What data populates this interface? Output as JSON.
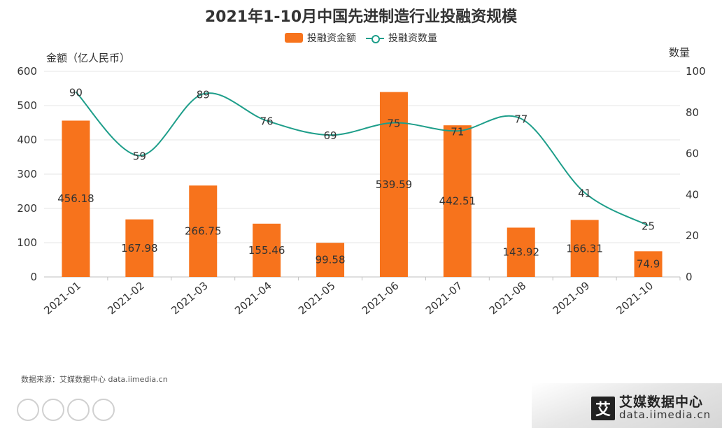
{
  "title": "2021年1-10月中国先进制造行业投融资规模",
  "legend": {
    "bar_label": "投融资金额",
    "line_label": "投融资数量"
  },
  "left_axis_title": "金额（亿人民币）",
  "right_axis_title": "数量",
  "source": "数据来源：艾媒数据中心 data.iimedia.cn",
  "brand": {
    "logo_char": "艾",
    "name": "艾媒数据中心",
    "url": "data.iimedia.cn"
  },
  "colors": {
    "bar": "#F7731C",
    "line": "#1E9E8A",
    "grid": "#e6e6e6",
    "axis": "#bfbfbf"
  },
  "chart_data": {
    "type": "bar",
    "categories": [
      "2021-01",
      "2021-02",
      "2021-03",
      "2021-04",
      "2021-05",
      "2021-06",
      "2021-07",
      "2021-08",
      "2021-09",
      "2021-10"
    ],
    "series": [
      {
        "name": "投融资金额",
        "type": "bar",
        "axis": "left",
        "values": [
          456.18,
          167.98,
          266.75,
          155.46,
          99.58,
          539.59,
          442.51,
          143.92,
          166.31,
          74.9
        ]
      },
      {
        "name": "投融资数量",
        "type": "line",
        "axis": "right",
        "values": [
          90,
          59,
          89,
          76,
          69,
          75,
          71,
          77,
          41,
          25
        ]
      }
    ],
    "y_left": {
      "label": "金额（亿人民币）",
      "min": 0,
      "max": 600,
      "ticks": [
        0,
        100,
        200,
        300,
        400,
        500,
        600
      ]
    },
    "y_right": {
      "label": "数量",
      "min": 0,
      "max": 100,
      "ticks": [
        0,
        20,
        40,
        60,
        80,
        100
      ]
    },
    "grid": true,
    "legend_position": "top-center"
  }
}
